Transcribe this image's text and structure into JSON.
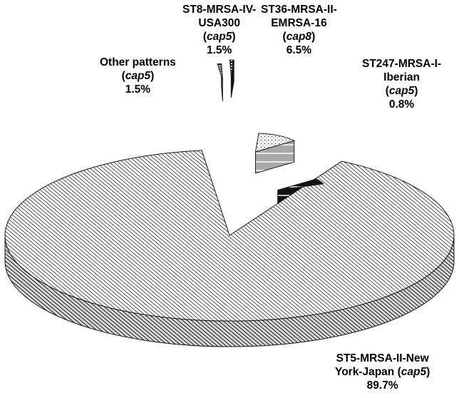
{
  "chart_data": {
    "type": "pie",
    "style": "3d-exploded",
    "title": "",
    "slices": [
      {
        "name": "ST5-MRSA-II-New York-Japan",
        "line1": "ST5-MRSA-II-New",
        "line2_pre": "York-Japan (",
        "capsule": "cap5",
        "line2_post": ")",
        "value": 89.7,
        "value_label": "89.7%",
        "pattern": "diagonal-stripes-fine"
      },
      {
        "name": "Other patterns",
        "line1": "Other patterns",
        "capsule": "cap5",
        "value": 1.5,
        "value_label": "1.5%",
        "pattern": "horizontal-stripes"
      },
      {
        "name": "ST8-MRSA-IV-USA300",
        "line1": "ST8-MRSA-IV-",
        "line2": "USA300",
        "capsule": "cap5",
        "value": 1.5,
        "value_label": "1.5%",
        "pattern": "checker-dark"
      },
      {
        "name": "ST36-MRSA-II-EMRSA-16",
        "line1": "ST36-MRSA-II-",
        "line2": "EMRSA-16",
        "capsule": "cap8",
        "value": 6.5,
        "value_label": "6.5%",
        "pattern": "dots"
      },
      {
        "name": "ST247-MRSA-I-Iberian",
        "line1": "ST247-MRSA-I-",
        "line2": "Iberian",
        "capsule": "cap5",
        "value": 0.8,
        "value_label": "0.8%",
        "pattern": "black-with-white-lines"
      }
    ],
    "colors": {
      "stroke": "#1a1a1a",
      "dark": "#111111",
      "light": "#ffffff",
      "grey": "#a8a8a8"
    }
  }
}
